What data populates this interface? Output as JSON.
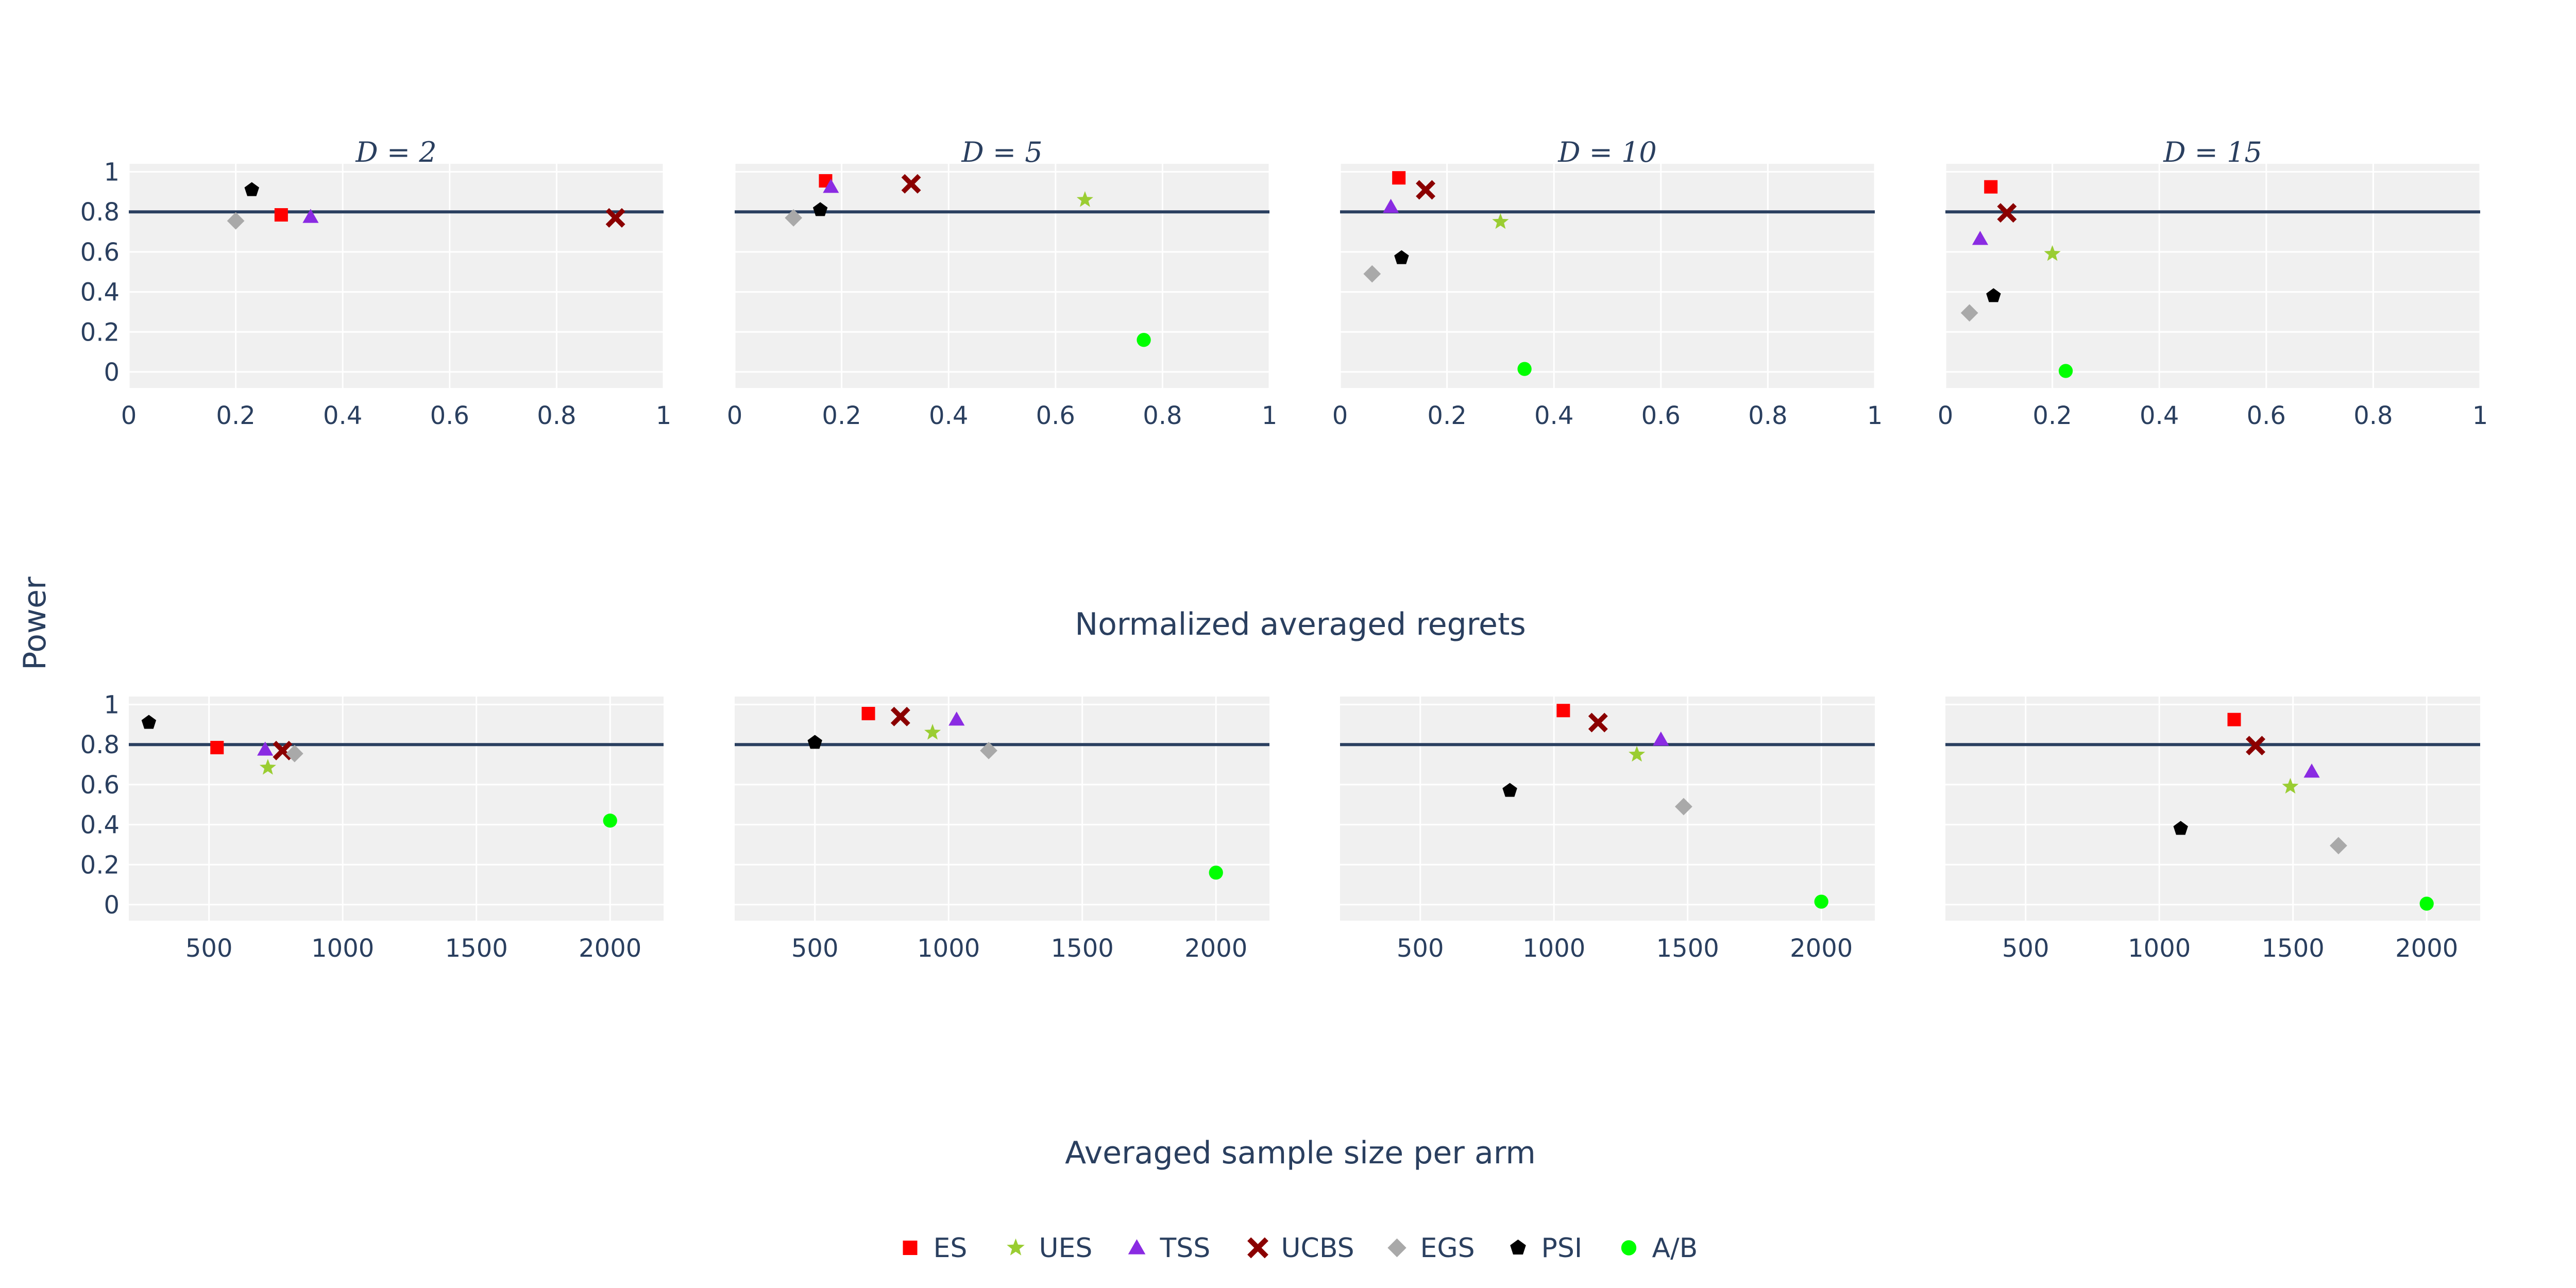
{
  "figure": {
    "ylabel": "Power",
    "row_xlabels": [
      "Normalized averaged regrets",
      "Averaged sample size per arm"
    ],
    "reference_line": 0.8,
    "colors": {
      "panel_bg": "#f0f0f0",
      "grid": "#ffffff",
      "text": "#2a3f5f",
      "reference_line": "#2a3f5f"
    }
  },
  "legend": {
    "placement": "bottom-center",
    "items": [
      {
        "key": "ES",
        "label": "ES",
        "symbol": "square",
        "color": "#ff0000"
      },
      {
        "key": "UES",
        "label": "UES",
        "symbol": "star",
        "color": "#9acd32"
      },
      {
        "key": "TSS",
        "label": "TSS",
        "symbol": "triangle-up",
        "color": "#8a2be2"
      },
      {
        "key": "UCBS",
        "label": "UCBS",
        "symbol": "x",
        "color": "#8b0000"
      },
      {
        "key": "EGS",
        "label": "EGS",
        "symbol": "diamond",
        "color": "#a9a9a9"
      },
      {
        "key": "PSI",
        "label": "PSI",
        "symbol": "pentagon",
        "color": "#000000"
      },
      {
        "key": "A/B",
        "label": "A/B",
        "symbol": "circle",
        "color": "#00ff00"
      }
    ]
  },
  "chart_data": [
    {
      "type": "scatter",
      "title": "D = 2",
      "title_tex": "D = 2",
      "xlabel": "Normalized averaged regrets",
      "ylabel": "Power",
      "xlim": [
        0,
        1
      ],
      "ylim": [
        -0.08,
        1.04
      ],
      "grid": true,
      "xticks": [
        0,
        0.2,
        0.4,
        0.6,
        0.8,
        1
      ],
      "xtick_labels": [
        "0",
        "0.2",
        "0.4",
        "0.6",
        "0.8",
        "1"
      ],
      "yticks": [
        0,
        0.2,
        0.4,
        0.6,
        0.8,
        1
      ],
      "ytick_labels": [
        "0",
        "0.2",
        "0.4",
        "0.6",
        "0.8",
        "1"
      ],
      "series": [
        {
          "name": "ES",
          "x": [
            0.285
          ],
          "y": [
            0.785
          ]
        },
        {
          "name": "UES",
          "x": [],
          "y": []
        },
        {
          "name": "TSS",
          "x": [
            0.34
          ],
          "y": [
            0.775
          ]
        },
        {
          "name": "UCBS",
          "x": [
            0.91
          ],
          "y": [
            0.77
          ]
        },
        {
          "name": "EGS",
          "x": [
            0.2
          ],
          "y": [
            0.755
          ]
        },
        {
          "name": "PSI",
          "x": [
            0.23
          ],
          "y": [
            0.91
          ]
        },
        {
          "name": "A/B",
          "x": [],
          "y": []
        }
      ]
    },
    {
      "type": "scatter",
      "title": "D = 5",
      "title_tex": "D = 5",
      "xlabel": "Normalized averaged regrets",
      "ylabel": "Power",
      "xlim": [
        0,
        1
      ],
      "ylim": [
        -0.08,
        1.04
      ],
      "grid": true,
      "xticks": [
        0,
        0.2,
        0.4,
        0.6,
        0.8,
        1
      ],
      "xtick_labels": [
        "0",
        "0.2",
        "0.4",
        "0.6",
        "0.8",
        "1"
      ],
      "yticks": [
        0,
        0.2,
        0.4,
        0.6,
        0.8,
        1
      ],
      "ytick_labels": [],
      "series": [
        {
          "name": "ES",
          "x": [
            0.17
          ],
          "y": [
            0.955
          ]
        },
        {
          "name": "UES",
          "x": [
            0.655
          ],
          "y": [
            0.86
          ]
        },
        {
          "name": "TSS",
          "x": [
            0.18
          ],
          "y": [
            0.925
          ]
        },
        {
          "name": "UCBS",
          "x": [
            0.33
          ],
          "y": [
            0.94
          ]
        },
        {
          "name": "EGS",
          "x": [
            0.11
          ],
          "y": [
            0.77
          ]
        },
        {
          "name": "PSI",
          "x": [
            0.16
          ],
          "y": [
            0.81
          ]
        },
        {
          "name": "A/B",
          "x": [
            0.765
          ],
          "y": [
            0.16
          ]
        }
      ]
    },
    {
      "type": "scatter",
      "title": "D = 10",
      "title_tex": "D = 10",
      "xlabel": "Normalized averaged regrets",
      "ylabel": "Power",
      "xlim": [
        0,
        1
      ],
      "ylim": [
        -0.08,
        1.04
      ],
      "grid": true,
      "xticks": [
        0,
        0.2,
        0.4,
        0.6,
        0.8,
        1
      ],
      "xtick_labels": [
        "0",
        "0.2",
        "0.4",
        "0.6",
        "0.8",
        "1"
      ],
      "yticks": [
        0,
        0.2,
        0.4,
        0.6,
        0.8,
        1
      ],
      "ytick_labels": [],
      "series": [
        {
          "name": "ES",
          "x": [
            0.11
          ],
          "y": [
            0.97
          ]
        },
        {
          "name": "UES",
          "x": [
            0.3
          ],
          "y": [
            0.75
          ]
        },
        {
          "name": "TSS",
          "x": [
            0.095
          ],
          "y": [
            0.825
          ]
        },
        {
          "name": "UCBS",
          "x": [
            0.16
          ],
          "y": [
            0.91
          ]
        },
        {
          "name": "EGS",
          "x": [
            0.06
          ],
          "y": [
            0.49
          ]
        },
        {
          "name": "PSI",
          "x": [
            0.115
          ],
          "y": [
            0.57
          ]
        },
        {
          "name": "A/B",
          "x": [
            0.345
          ],
          "y": [
            0.015
          ]
        }
      ]
    },
    {
      "type": "scatter",
      "title": "D = 15",
      "title_tex": "D = 15",
      "xlabel": "Normalized averaged regrets",
      "ylabel": "Power",
      "xlim": [
        0,
        1
      ],
      "ylim": [
        -0.08,
        1.04
      ],
      "grid": true,
      "xticks": [
        0,
        0.2,
        0.4,
        0.6,
        0.8,
        1
      ],
      "xtick_labels": [
        "0",
        "0.2",
        "0.4",
        "0.6",
        "0.8",
        "1"
      ],
      "yticks": [
        0,
        0.2,
        0.4,
        0.6,
        0.8,
        1
      ],
      "ytick_labels": [],
      "series": [
        {
          "name": "ES",
          "x": [
            0.085
          ],
          "y": [
            0.925
          ]
        },
        {
          "name": "UES",
          "x": [
            0.2
          ],
          "y": [
            0.59
          ]
        },
        {
          "name": "TSS",
          "x": [
            0.065
          ],
          "y": [
            0.665
          ]
        },
        {
          "name": "UCBS",
          "x": [
            0.115
          ],
          "y": [
            0.795
          ]
        },
        {
          "name": "EGS",
          "x": [
            0.045
          ],
          "y": [
            0.295
          ]
        },
        {
          "name": "PSI",
          "x": [
            0.09
          ],
          "y": [
            0.38
          ]
        },
        {
          "name": "A/B",
          "x": [
            0.225
          ],
          "y": [
            0.005
          ]
        }
      ]
    },
    {
      "type": "scatter",
      "title": "",
      "xlabel": "Averaged sample size per arm",
      "ylabel": "Power",
      "xlim": [
        200,
        2200
      ],
      "ylim": [
        -0.08,
        1.04
      ],
      "grid": true,
      "xticks": [
        500,
        1000,
        1500,
        2000
      ],
      "xtick_labels": [
        "500",
        "1000",
        "1500",
        "2000"
      ],
      "yticks": [
        0,
        0.2,
        0.4,
        0.6,
        0.8,
        1
      ],
      "ytick_labels": [
        "0",
        "0.2",
        "0.4",
        "0.6",
        "0.8",
        "1"
      ],
      "series": [
        {
          "name": "ES",
          "x": [
            530
          ],
          "y": [
            0.785
          ]
        },
        {
          "name": "UES",
          "x": [
            720
          ],
          "y": [
            0.685
          ]
        },
        {
          "name": "TSS",
          "x": [
            710
          ],
          "y": [
            0.775
          ]
        },
        {
          "name": "UCBS",
          "x": [
            775
          ],
          "y": [
            0.77
          ]
        },
        {
          "name": "EGS",
          "x": [
            820
          ],
          "y": [
            0.755
          ]
        },
        {
          "name": "PSI",
          "x": [
            275
          ],
          "y": [
            0.91
          ]
        },
        {
          "name": "A/B",
          "x": [
            2000
          ],
          "y": [
            0.42
          ]
        }
      ]
    },
    {
      "type": "scatter",
      "title": "",
      "xlabel": "Averaged sample size per arm",
      "ylabel": "Power",
      "xlim": [
        200,
        2200
      ],
      "ylim": [
        -0.08,
        1.04
      ],
      "grid": true,
      "xticks": [
        500,
        1000,
        1500,
        2000
      ],
      "xtick_labels": [
        "500",
        "1000",
        "1500",
        "2000"
      ],
      "yticks": [
        0,
        0.2,
        0.4,
        0.6,
        0.8,
        1
      ],
      "ytick_labels": [],
      "series": [
        {
          "name": "ES",
          "x": [
            700
          ],
          "y": [
            0.955
          ]
        },
        {
          "name": "UES",
          "x": [
            940
          ],
          "y": [
            0.86
          ]
        },
        {
          "name": "TSS",
          "x": [
            1030
          ],
          "y": [
            0.925
          ]
        },
        {
          "name": "UCBS",
          "x": [
            820
          ],
          "y": [
            0.94
          ]
        },
        {
          "name": "EGS",
          "x": [
            1150
          ],
          "y": [
            0.77
          ]
        },
        {
          "name": "PSI",
          "x": [
            500
          ],
          "y": [
            0.81
          ]
        },
        {
          "name": "A/B",
          "x": [
            2000
          ],
          "y": [
            0.16
          ]
        }
      ]
    },
    {
      "type": "scatter",
      "title": "",
      "xlabel": "Averaged sample size per arm",
      "ylabel": "Power",
      "xlim": [
        200,
        2200
      ],
      "ylim": [
        -0.08,
        1.04
      ],
      "grid": true,
      "xticks": [
        500,
        1000,
        1500,
        2000
      ],
      "xtick_labels": [
        "500",
        "1000",
        "1500",
        "2000"
      ],
      "yticks": [
        0,
        0.2,
        0.4,
        0.6,
        0.8,
        1
      ],
      "ytick_labels": [],
      "series": [
        {
          "name": "ES",
          "x": [
            1035
          ],
          "y": [
            0.97
          ]
        },
        {
          "name": "UES",
          "x": [
            1310
          ],
          "y": [
            0.75
          ]
        },
        {
          "name": "TSS",
          "x": [
            1400
          ],
          "y": [
            0.825
          ]
        },
        {
          "name": "UCBS",
          "x": [
            1165
          ],
          "y": [
            0.91
          ]
        },
        {
          "name": "EGS",
          "x": [
            1485
          ],
          "y": [
            0.49
          ]
        },
        {
          "name": "PSI",
          "x": [
            835
          ],
          "y": [
            0.57
          ]
        },
        {
          "name": "A/B",
          "x": [
            2000
          ],
          "y": [
            0.015
          ]
        }
      ]
    },
    {
      "type": "scatter",
      "title": "",
      "xlabel": "Averaged sample size per arm",
      "ylabel": "Power",
      "xlim": [
        200,
        2200
      ],
      "ylim": [
        -0.08,
        1.04
      ],
      "grid": true,
      "xticks": [
        500,
        1000,
        1500,
        2000
      ],
      "xtick_labels": [
        "500",
        "1000",
        "1500",
        "2000"
      ],
      "yticks": [
        0,
        0.2,
        0.4,
        0.6,
        0.8,
        1
      ],
      "ytick_labels": [],
      "series": [
        {
          "name": "ES",
          "x": [
            1280
          ],
          "y": [
            0.925
          ]
        },
        {
          "name": "UES",
          "x": [
            1490
          ],
          "y": [
            0.59
          ]
        },
        {
          "name": "TSS",
          "x": [
            1570
          ],
          "y": [
            0.665
          ]
        },
        {
          "name": "UCBS",
          "x": [
            1360
          ],
          "y": [
            0.795
          ]
        },
        {
          "name": "EGS",
          "x": [
            1670
          ],
          "y": [
            0.295
          ]
        },
        {
          "name": "PSI",
          "x": [
            1080
          ],
          "y": [
            0.38
          ]
        },
        {
          "name": "A/B",
          "x": [
            2000
          ],
          "y": [
            0.005
          ]
        }
      ]
    }
  ]
}
